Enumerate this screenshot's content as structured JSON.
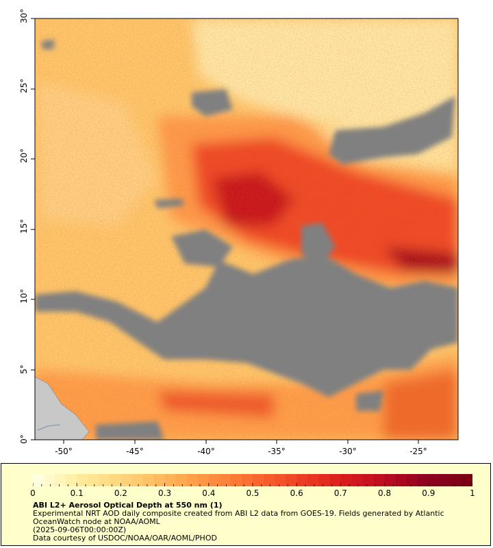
{
  "map": {
    "y_ticks": [
      "30°",
      "25°",
      "20°",
      "15°",
      "10°",
      "5°",
      "0°"
    ],
    "x_ticks": [
      "-50°",
      "-45°",
      "-40°",
      "-35°",
      "-30°",
      "-25°"
    ],
    "colors": {
      "no_data": "#808080",
      "land": "#c8c8c8",
      "frame": "#000000"
    }
  },
  "colorbar": {
    "labels": [
      "0",
      "0.1",
      "0.2",
      "0.3",
      "0.4",
      "0.5",
      "0.6",
      "0.7",
      "0.8",
      "0.9",
      "1"
    ],
    "stops": [
      "#ffffe0",
      "#ffeb9a",
      "#ffd37a",
      "#ffb55a",
      "#ff9040",
      "#fa6a2e",
      "#f04424",
      "#dc1e1c",
      "#c00c20",
      "#900020",
      "#7a0014"
    ]
  },
  "caption": {
    "title": "ABI L2+ Aerosol Optical Depth at 550 nm (1)",
    "line1": "Experimental NRT AOD daily composite created from ABI L2 data from GOES-19. Fields generated by Atlantic",
    "line2": "OceanWatch node at NOAA/AOML",
    "line3": "(2025-09-06T00:00:00Z)",
    "line4": "Data courtesy of USDOC/NOAA/OAR/AOML/PHOD"
  }
}
